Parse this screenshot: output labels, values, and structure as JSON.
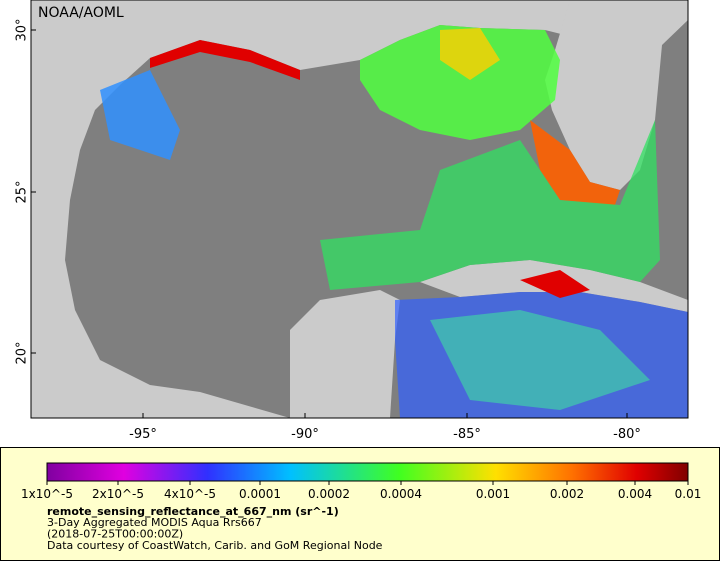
{
  "map": {
    "label": "NOAA/AOML",
    "lat_ticks": [
      "30°",
      "25°",
      "20°"
    ],
    "lon_ticks": [
      "-95°",
      "-90°",
      "-85°",
      "-80°"
    ]
  },
  "colorbar": {
    "labels": [
      "1x10^-5",
      "2x10^-5",
      "4x10^-5",
      "0.0001",
      "0.0002",
      "0.0004",
      "0.001",
      "0.002",
      "0.004",
      "0.01"
    ]
  },
  "caption": {
    "variable": "remote_sensing_reflectance_at_667_nm (sr^-1)",
    "lines": [
      "3-Day Aggregated MODIS Aqua Rrs667",
      "(2018-07-25T00:00:00Z)",
      "Data courtesy of CoastWatch, Carib. and GoM Regional Node"
    ]
  }
}
